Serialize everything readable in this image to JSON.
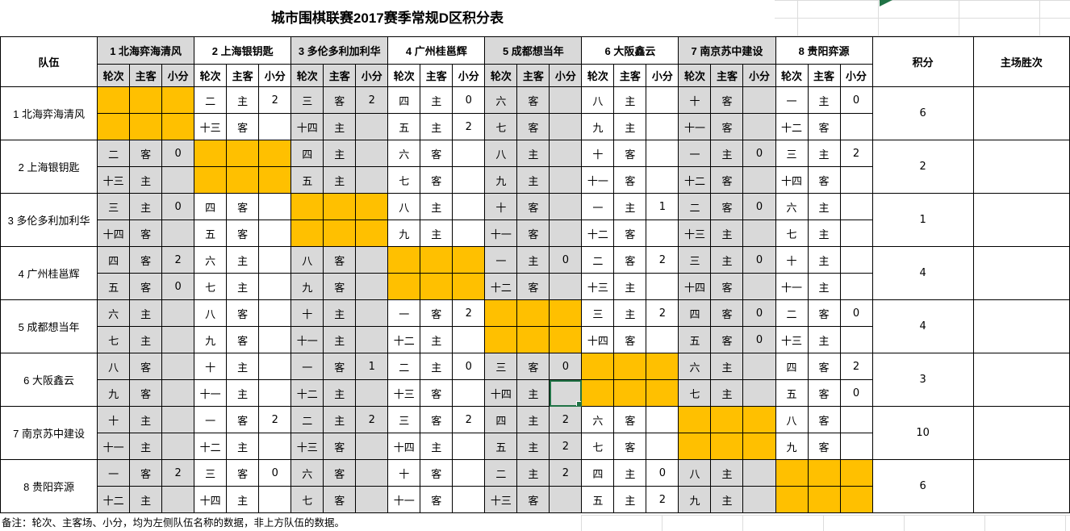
{
  "title": "城市围棋联赛2017赛季常规D区积分表",
  "note": "备注：轮次、主客场、小分，均为左侧队伍名称的数据，非上方队伍的数据。",
  "colors": {
    "self_cell": "#FFC000",
    "shaded_column": "#D9D9D9",
    "selection_green": "#217346",
    "grid_black": "#000000",
    "faint_gridline": "#DCDCDC"
  },
  "header": {
    "team_col": "队伍",
    "sub_cols": [
      "轮次",
      "主客",
      "小分"
    ],
    "points_col": "积分",
    "home_wins_col": "主场胜次"
  },
  "teams": [
    {
      "num": "1",
      "name": "北海弈海清风"
    },
    {
      "num": "2",
      "name": "上海银钥匙"
    },
    {
      "num": "3",
      "name": "多伦多利加利华"
    },
    {
      "num": "4",
      "name": "广州桂邕辉"
    },
    {
      "num": "5",
      "name": "成都想当年"
    },
    {
      "num": "6",
      "name": "大阪鑫云"
    },
    {
      "num": "7",
      "name": "南京苏中建设"
    },
    {
      "num": "8",
      "name": "贵阳弈源"
    }
  ],
  "rows": [
    {
      "num": "1",
      "name": "北海弈海清风",
      "points": "6",
      "home_wins": "",
      "matches": [
        "self",
        {
          "top": [
            "二",
            "主",
            "2"
          ],
          "bottom": [
            "十三",
            "客",
            ""
          ]
        },
        {
          "top": [
            "三",
            "客",
            "2"
          ],
          "bottom": [
            "十四",
            "主",
            ""
          ]
        },
        {
          "top": [
            "四",
            "主",
            "0"
          ],
          "bottom": [
            "五",
            "主",
            "2"
          ]
        },
        {
          "top": [
            "六",
            "客",
            ""
          ],
          "bottom": [
            "七",
            "客",
            ""
          ]
        },
        {
          "top": [
            "八",
            "主",
            ""
          ],
          "bottom": [
            "九",
            "主",
            ""
          ]
        },
        {
          "top": [
            "十",
            "客",
            ""
          ],
          "bottom": [
            "十一",
            "客",
            ""
          ]
        },
        {
          "top": [
            "一",
            "主",
            "0"
          ],
          "bottom": [
            "十二",
            "客",
            ""
          ]
        }
      ]
    },
    {
      "num": "2",
      "name": "上海银钥匙",
      "points": "2",
      "home_wins": "",
      "matches": [
        {
          "top": [
            "二",
            "客",
            "0"
          ],
          "bottom": [
            "十三",
            "主",
            ""
          ]
        },
        "self",
        {
          "top": [
            "四",
            "主",
            ""
          ],
          "bottom": [
            "五",
            "主",
            ""
          ]
        },
        {
          "top": [
            "六",
            "客",
            ""
          ],
          "bottom": [
            "七",
            "客",
            ""
          ]
        },
        {
          "top": [
            "八",
            "主",
            ""
          ],
          "bottom": [
            "九",
            "主",
            ""
          ]
        },
        {
          "top": [
            "十",
            "客",
            ""
          ],
          "bottom": [
            "十一",
            "客",
            ""
          ]
        },
        {
          "top": [
            "一",
            "主",
            "0"
          ],
          "bottom": [
            "十二",
            "客",
            ""
          ]
        },
        {
          "top": [
            "三",
            "主",
            "2"
          ],
          "bottom": [
            "十四",
            "客",
            ""
          ]
        }
      ]
    },
    {
      "num": "3",
      "name": "多伦多利加利华",
      "points": "1",
      "home_wins": "",
      "matches": [
        {
          "top": [
            "三",
            "主",
            "0"
          ],
          "bottom": [
            "十四",
            "客",
            ""
          ]
        },
        {
          "top": [
            "四",
            "客",
            ""
          ],
          "bottom": [
            "五",
            "客",
            ""
          ]
        },
        "self",
        {
          "top": [
            "八",
            "主",
            ""
          ],
          "bottom": [
            "九",
            "主",
            ""
          ]
        },
        {
          "top": [
            "十",
            "客",
            ""
          ],
          "bottom": [
            "十一",
            "客",
            ""
          ]
        },
        {
          "top": [
            "一",
            "主",
            "1"
          ],
          "bottom": [
            "十二",
            "客",
            ""
          ]
        },
        {
          "top": [
            "二",
            "客",
            "0"
          ],
          "bottom": [
            "十三",
            "主",
            ""
          ]
        },
        {
          "top": [
            "六",
            "主",
            ""
          ],
          "bottom": [
            "七",
            "主",
            ""
          ]
        }
      ]
    },
    {
      "num": "4",
      "name": "广州桂邕辉",
      "points": "4",
      "home_wins": "",
      "matches": [
        {
          "top": [
            "四",
            "客",
            "2"
          ],
          "bottom": [
            "五",
            "客",
            "0"
          ]
        },
        {
          "top": [
            "六",
            "主",
            ""
          ],
          "bottom": [
            "七",
            "主",
            ""
          ]
        },
        {
          "top": [
            "八",
            "客",
            ""
          ],
          "bottom": [
            "九",
            "客",
            ""
          ]
        },
        "self",
        {
          "top": [
            "一",
            "主",
            "0"
          ],
          "bottom": [
            "十二",
            "客",
            ""
          ]
        },
        {
          "top": [
            "二",
            "客",
            "2"
          ],
          "bottom": [
            "十三",
            "主",
            ""
          ]
        },
        {
          "top": [
            "三",
            "主",
            "0"
          ],
          "bottom": [
            "十四",
            "客",
            ""
          ]
        },
        {
          "top": [
            "十",
            "主",
            ""
          ],
          "bottom": [
            "十一",
            "主",
            ""
          ]
        }
      ]
    },
    {
      "num": "5",
      "name": "成都想当年",
      "points": "4",
      "home_wins": "",
      "matches": [
        {
          "top": [
            "六",
            "主",
            ""
          ],
          "bottom": [
            "七",
            "主",
            ""
          ]
        },
        {
          "top": [
            "八",
            "客",
            ""
          ],
          "bottom": [
            "九",
            "客",
            ""
          ]
        },
        {
          "top": [
            "十",
            "主",
            ""
          ],
          "bottom": [
            "十一",
            "主",
            ""
          ]
        },
        {
          "top": [
            "一",
            "客",
            "2"
          ],
          "bottom": [
            "十二",
            "主",
            ""
          ]
        },
        "self",
        {
          "top": [
            "三",
            "主",
            "2"
          ],
          "bottom": [
            "十四",
            "客",
            ""
          ]
        },
        {
          "top": [
            "四",
            "客",
            "0"
          ],
          "bottom": [
            "五",
            "客",
            "0"
          ]
        },
        {
          "top": [
            "二",
            "客",
            "0"
          ],
          "bottom": [
            "十三",
            "主",
            ""
          ]
        }
      ]
    },
    {
      "num": "6",
      "name": "大阪鑫云",
      "points": "3",
      "home_wins": "",
      "matches": [
        {
          "top": [
            "八",
            "客",
            ""
          ],
          "bottom": [
            "九",
            "客",
            ""
          ]
        },
        {
          "top": [
            "十",
            "主",
            ""
          ],
          "bottom": [
            "十一",
            "主",
            ""
          ]
        },
        {
          "top": [
            "一",
            "客",
            "1"
          ],
          "bottom": [
            "十二",
            "主",
            ""
          ]
        },
        {
          "top": [
            "二",
            "主",
            "0"
          ],
          "bottom": [
            "十三",
            "客",
            ""
          ]
        },
        {
          "top": [
            "三",
            "客",
            "0"
          ],
          "bottom": [
            "十四",
            "主",
            ""
          ]
        },
        "self",
        {
          "top": [
            "六",
            "主",
            ""
          ],
          "bottom": [
            "七",
            "主",
            ""
          ]
        },
        {
          "top": [
            "四",
            "客",
            "2"
          ],
          "bottom": [
            "五",
            "客",
            "0"
          ]
        }
      ]
    },
    {
      "num": "7",
      "name": "南京苏中建设",
      "points": "10",
      "home_wins": "",
      "matches": [
        {
          "top": [
            "十",
            "主",
            ""
          ],
          "bottom": [
            "十一",
            "主",
            ""
          ]
        },
        {
          "top": [
            "一",
            "客",
            "2"
          ],
          "bottom": [
            "十二",
            "主",
            ""
          ]
        },
        {
          "top": [
            "二",
            "主",
            "2"
          ],
          "bottom": [
            "十三",
            "客",
            ""
          ]
        },
        {
          "top": [
            "三",
            "客",
            "2"
          ],
          "bottom": [
            "十四",
            "主",
            ""
          ]
        },
        {
          "top": [
            "四",
            "主",
            "2"
          ],
          "bottom": [
            "五",
            "主",
            "2"
          ]
        },
        {
          "top": [
            "六",
            "客",
            ""
          ],
          "bottom": [
            "七",
            "客",
            ""
          ]
        },
        "self",
        {
          "top": [
            "八",
            "客",
            ""
          ],
          "bottom": [
            "九",
            "客",
            ""
          ]
        }
      ]
    },
    {
      "num": "8",
      "name": "贵阳弈源",
      "points": "6",
      "home_wins": "",
      "matches": [
        {
          "top": [
            "一",
            "客",
            "2"
          ],
          "bottom": [
            "十二",
            "主",
            ""
          ]
        },
        {
          "top": [
            "三",
            "客",
            "0"
          ],
          "bottom": [
            "十四",
            "主",
            ""
          ]
        },
        {
          "top": [
            "六",
            "客",
            ""
          ],
          "bottom": [
            "七",
            "客",
            ""
          ]
        },
        {
          "top": [
            "十",
            "客",
            ""
          ],
          "bottom": [
            "十一",
            "客",
            ""
          ]
        },
        {
          "top": [
            "二",
            "主",
            "2"
          ],
          "bottom": [
            "十三",
            "客",
            ""
          ]
        },
        {
          "top": [
            "四",
            "主",
            "0"
          ],
          "bottom": [
            "五",
            "主",
            "2"
          ]
        },
        {
          "top": [
            "八",
            "主",
            ""
          ],
          "bottom": [
            "九",
            "主",
            ""
          ]
        },
        "self"
      ]
    }
  ],
  "selected_cell": {
    "row_index": 5,
    "match_index": 4,
    "sub": "bottom",
    "part": 2
  }
}
